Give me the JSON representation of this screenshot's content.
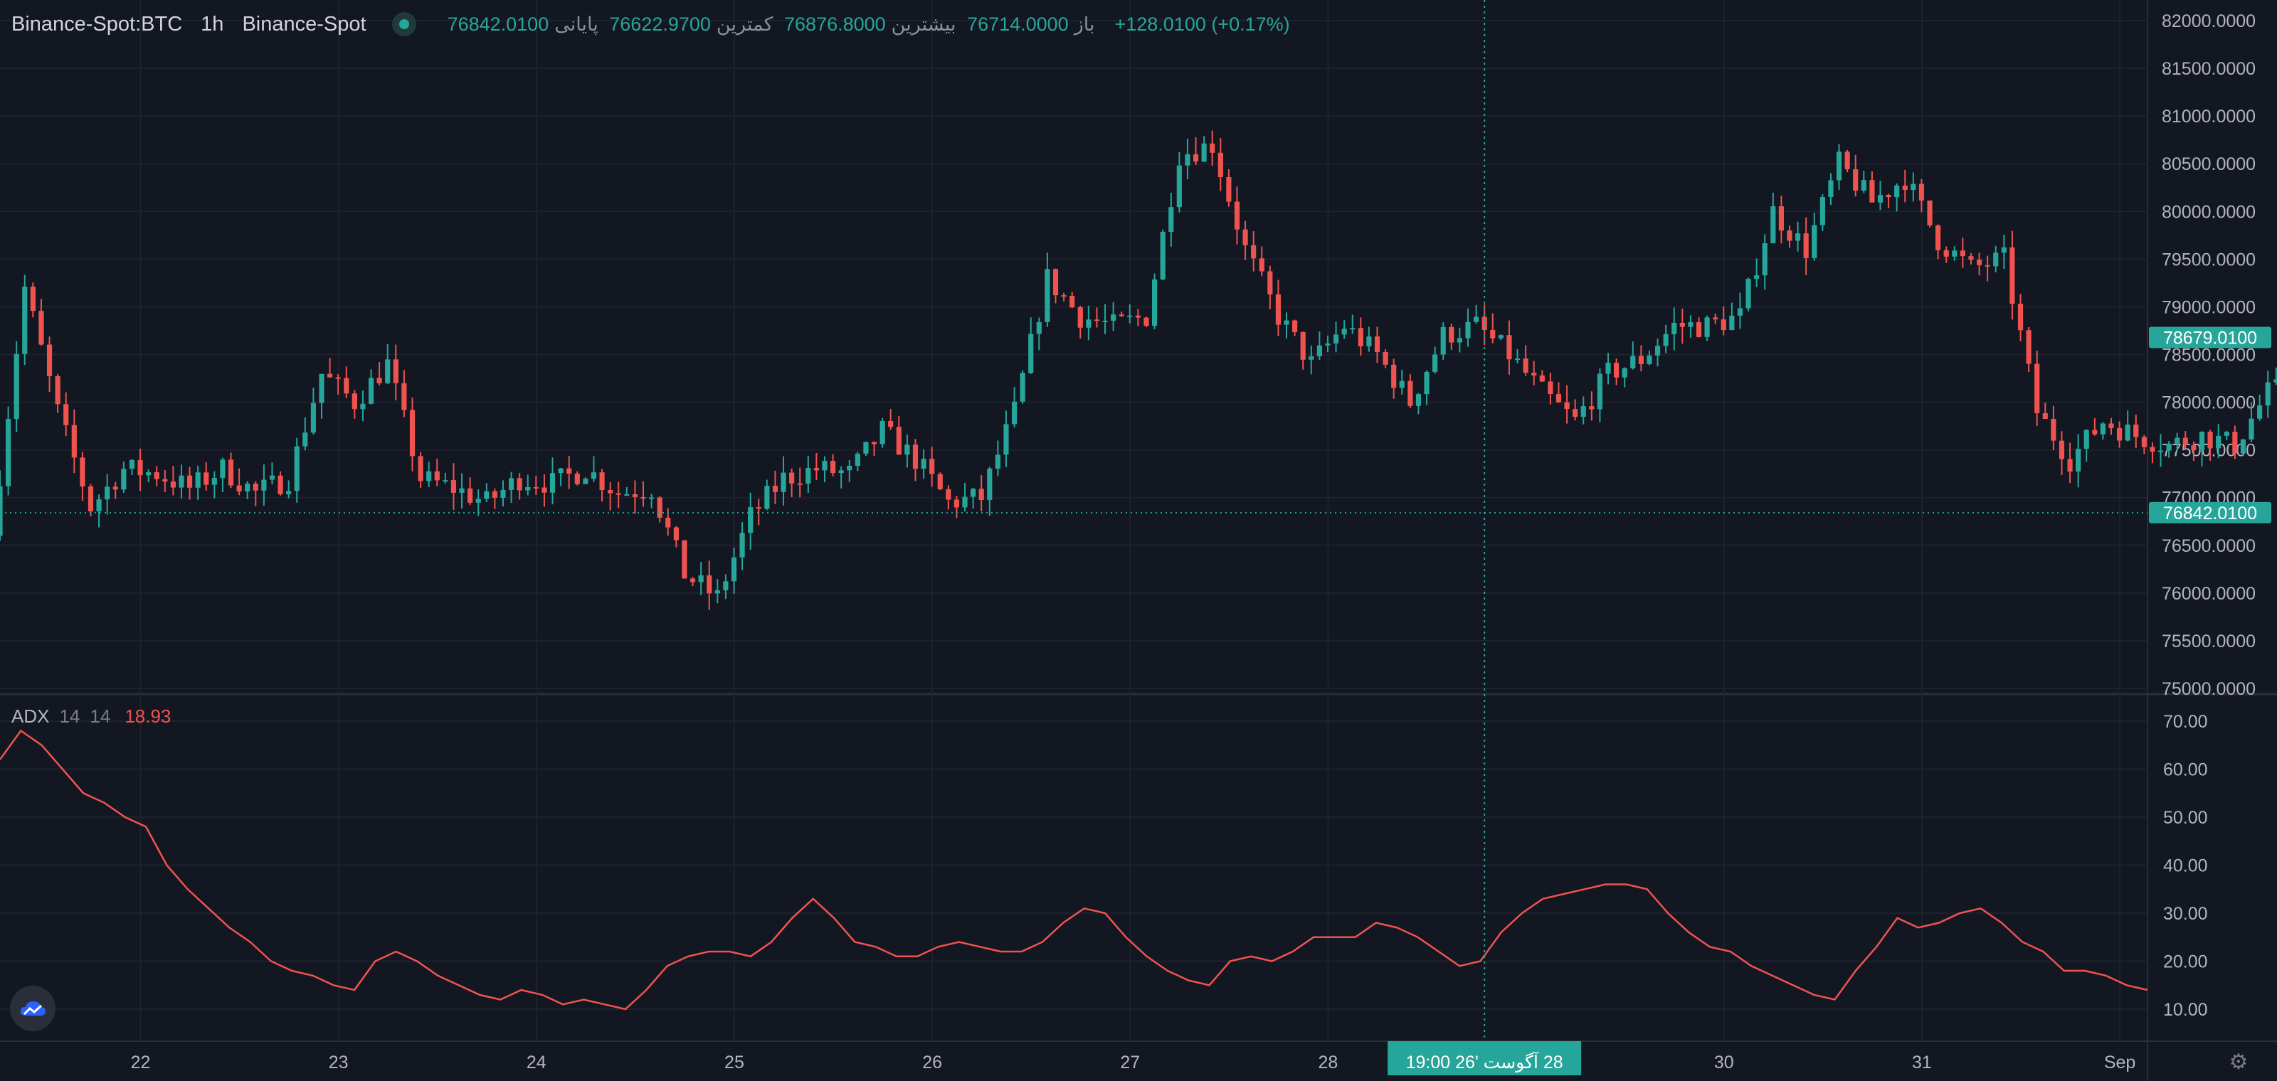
{
  "header": {
    "symbol": "Binance-Spot:BTC",
    "timeframe": "1h",
    "exchange": "Binance-Spot",
    "open_label": "باز",
    "open": "76714.0000",
    "high_label": "بیشترین",
    "high": "76876.8000",
    "low_label": "کمترین",
    "low": "76622.9700",
    "close_label": "پایانی",
    "close": "76842.0100",
    "change": "+128.0100 (+0.17%)"
  },
  "indicator": {
    "name": "ADX",
    "param1": "14",
    "param2": "14",
    "value": "18.93"
  },
  "colors": {
    "up": "#26a69a",
    "down": "#ef5350",
    "adx": "#ef5350",
    "background": "#131722",
    "grid": "#1e222d"
  },
  "icons": {
    "logo": "cloud-logo-icon",
    "settings": "gear-icon"
  },
  "chart_data": [
    {
      "type": "candlestick",
      "title": "Binance-Spot:BTC 1h",
      "y_ticks": [
        "82000.0000",
        "81500.0000",
        "81000.0000",
        "80500.0000",
        "80000.0000",
        "79500.0000",
        "79000.0000",
        "78500.0000",
        "78000.0000",
        "77500.0000",
        "77000.0000",
        "76500.0000",
        "76000.0000",
        "75500.0000",
        "75000.0000"
      ],
      "ylim": [
        75000,
        82000
      ],
      "x_ticks": [
        "22",
        "23",
        "24",
        "25",
        "26",
        "27",
        "28",
        "30",
        "31",
        "Sep"
      ],
      "x_tick_positions_day": [
        22,
        23,
        24,
        25,
        26,
        27,
        28,
        30,
        31,
        32
      ],
      "xlim_day": [
        21.29,
        32.14
      ],
      "crosshair_label": "28 آگوست '26",
      "crosshair_time": "19:00",
      "crosshair_day": 28.79,
      "price_labels": [
        {
          "value": 78679.01,
          "text": "78679.0100"
        },
        {
          "value": 76842.01,
          "text": "76842.0100"
        }
      ],
      "closes_4h": [
        76600,
        79200,
        77900,
        76900,
        77300,
        77250,
        77100,
        77300,
        77050,
        77200,
        78300,
        78000,
        78400,
        77200,
        77100,
        76950,
        77200,
        77150,
        77300,
        77050,
        77100,
        76200,
        75950,
        76800,
        77200,
        77300,
        77250,
        77700,
        77400,
        76950,
        77000,
        77900,
        79300,
        78900,
        78800,
        78900,
        80600,
        80700,
        79600,
        78900,
        78400,
        78800,
        78500,
        78000,
        78700,
        78800,
        78500,
        78100,
        77800,
        78300,
        78450,
        78800,
        78800,
        78900,
        80000,
        79600,
        80500,
        80100,
        80350,
        79700,
        79400,
        79500,
        77900,
        77400,
        77800,
        77650,
        77550,
        77650,
        77550,
        78100,
        78200,
        78150,
        78150,
        78100,
        78200,
        78100,
        78700,
        79200,
        78600,
        77900,
        77500,
        77800,
        78000,
        78400,
        78500,
        77900,
        78600,
        79000,
        78650,
        78550,
        78680
      ]
    },
    {
      "type": "line",
      "series": [
        {
          "name": "ADX",
          "values": [
            62,
            68,
            65,
            60,
            55,
            53,
            50,
            48,
            40,
            35,
            31,
            27,
            24,
            20,
            18,
            17,
            15,
            14,
            20,
            22,
            20,
            17,
            15,
            13,
            12,
            14,
            13,
            11,
            12,
            11,
            10,
            14,
            19,
            21,
            22,
            22,
            21,
            24,
            29,
            33,
            29,
            24,
            23,
            21,
            21,
            23,
            24,
            23,
            22,
            22,
            24,
            28,
            31,
            30,
            25,
            21,
            18,
            16,
            15,
            20,
            21,
            20,
            22,
            25,
            25,
            25,
            28,
            27,
            25,
            22,
            19,
            20,
            26,
            30,
            33,
            34,
            35,
            36,
            36,
            35,
            30,
            26,
            23,
            22,
            19,
            17,
            15,
            13,
            12,
            18,
            23,
            29,
            27,
            28,
            30,
            31,
            28,
            24,
            22,
            18,
            18,
            17,
            15,
            14
          ]
        }
      ],
      "y_ticks": [
        "70.00",
        "60.00",
        "50.00",
        "40.00",
        "30.00",
        "20.00",
        "10.00"
      ],
      "ylim": [
        7,
        75
      ]
    }
  ]
}
